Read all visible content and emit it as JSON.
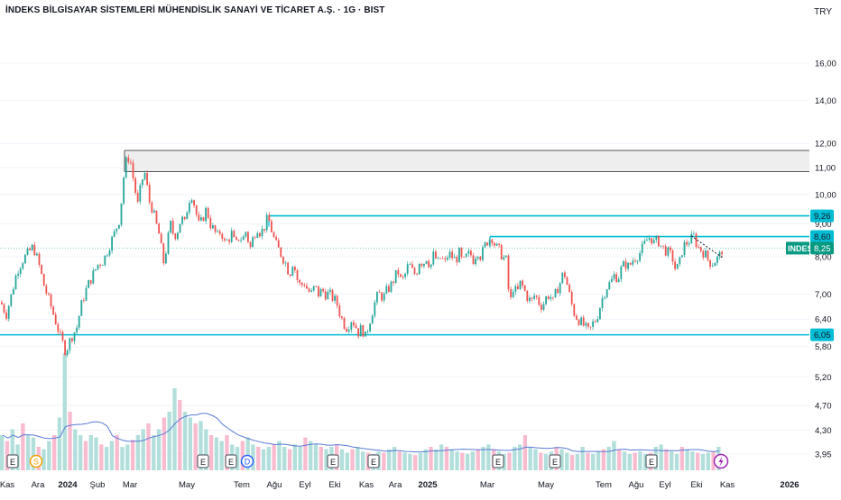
{
  "header": {
    "title": "İNDEKS BİLGİSAYAR SİSTEMLERİ MÜHENDİSLİK SANAYİ VE TİCARET A.Ş. · 1G · BIST",
    "currency": "TRY"
  },
  "chart_data": {
    "type": "candlestick",
    "y_scale": "log",
    "ylim": [
      3.75,
      18.2
    ],
    "y_ticks": [
      "16,00",
      "14,00",
      "12,00",
      "11,00",
      "10,00",
      "9,00",
      "8,00",
      "7,00",
      "6,40",
      "5,80",
      "5,20",
      "4,70",
      "4,30",
      "3,95"
    ],
    "x_ticks": [
      "Kas",
      "Ara",
      "2024",
      "Şub",
      "Mar",
      "May",
      "Tem",
      "Ağu",
      "Eyl",
      "Eki",
      "Kas",
      "Ara",
      "2025",
      "Mar",
      "May",
      "Tem",
      "Ağu",
      "Eyl",
      "Eki",
      "Kas",
      "2026"
    ],
    "x_ticks_bold": [
      "2024",
      "2025",
      "2026"
    ],
    "last_price": 8.25,
    "ticker_label": "INDES",
    "ticker_value": "8,25",
    "price_path": [
      [
        0,
        6.8
      ],
      [
        6,
        6.5
      ],
      [
        12,
        7.0
      ],
      [
        18,
        7.6
      ],
      [
        24,
        7.9
      ],
      [
        30,
        8.1
      ],
      [
        36,
        8.3
      ],
      [
        42,
        7.8
      ],
      [
        48,
        7.2
      ],
      [
        54,
        6.8
      ],
      [
        60,
        6.4
      ],
      [
        66,
        6.0
      ],
      [
        72,
        5.7
      ],
      [
        78,
        6.0
      ],
      [
        84,
        6.2
      ],
      [
        90,
        6.8
      ],
      [
        96,
        7.2
      ],
      [
        102,
        7.5
      ],
      [
        108,
        7.8
      ],
      [
        114,
        7.9
      ],
      [
        120,
        8.3
      ],
      [
        126,
        8.7
      ],
      [
        132,
        9.2
      ],
      [
        136,
        10.6
      ],
      [
        140,
        11.5
      ],
      [
        144,
        11.2
      ],
      [
        148,
        10.3
      ],
      [
        152,
        9.6
      ],
      [
        156,
        10.5
      ],
      [
        160,
        10.8
      ],
      [
        164,
        9.8
      ],
      [
        168,
        9.5
      ],
      [
        172,
        9.0
      ],
      [
        176,
        8.6
      ],
      [
        180,
        7.8
      ],
      [
        184,
        8.3
      ],
      [
        188,
        9.0
      ],
      [
        192,
        8.6
      ],
      [
        196,
        8.8
      ],
      [
        200,
        9.2
      ],
      [
        204,
        9.0
      ],
      [
        208,
        9.8
      ],
      [
        212,
        10.0
      ],
      [
        216,
        9.4
      ],
      [
        220,
        8.9
      ],
      [
        224,
        9.2
      ],
      [
        228,
        9.5
      ],
      [
        232,
        9.0
      ],
      [
        236,
        8.8
      ],
      [
        240,
        8.6
      ],
      [
        244,
        8.8
      ],
      [
        248,
        8.4
      ],
      [
        252,
        8.5
      ],
      [
        256,
        8.7
      ],
      [
        260,
        8.3
      ],
      [
        264,
        8.6
      ],
      [
        268,
        8.5
      ],
      [
        272,
        8.8
      ],
      [
        276,
        8.2
      ],
      [
        280,
        8.6
      ],
      [
        284,
        8.9
      ],
      [
        288,
        8.7
      ],
      [
        292,
        8.9
      ],
      [
        296,
        9.2
      ],
      [
        300,
        8.8
      ],
      [
        304,
        8.4
      ],
      [
        308,
        8.2
      ],
      [
        312,
        8.0
      ],
      [
        316,
        7.8
      ],
      [
        320,
        7.5
      ],
      [
        324,
        7.9
      ],
      [
        328,
        7.4
      ],
      [
        332,
        7.2
      ],
      [
        336,
        7.3
      ],
      [
        340,
        7.1
      ],
      [
        344,
        7.0
      ],
      [
        348,
        7.2
      ],
      [
        352,
        7.0
      ],
      [
        356,
        7.1
      ],
      [
        360,
        7.0
      ],
      [
        364,
        7.0
      ],
      [
        368,
        6.9
      ],
      [
        372,
        6.8
      ],
      [
        376,
        6.5
      ],
      [
        380,
        6.3
      ],
      [
        384,
        6.2
      ],
      [
        388,
        6.4
      ],
      [
        392,
        6.3
      ],
      [
        396,
        6.1
      ],
      [
        400,
        6.2
      ],
      [
        404,
        6.0
      ],
      [
        408,
        6.3
      ],
      [
        412,
        6.6
      ],
      [
        416,
        6.9
      ],
      [
        420,
        7.0
      ],
      [
        424,
        6.9
      ],
      [
        428,
        7.1
      ],
      [
        432,
        7.2
      ],
      [
        436,
        7.4
      ],
      [
        440,
        7.6
      ],
      [
        444,
        7.3
      ],
      [
        448,
        7.5
      ],
      [
        452,
        7.8
      ],
      [
        456,
        7.6
      ],
      [
        460,
        7.5
      ],
      [
        464,
        7.9
      ],
      [
        468,
        7.8
      ],
      [
        472,
        8.0
      ],
      [
        476,
        7.7
      ],
      [
        480,
        8.1
      ],
      [
        484,
        7.8
      ],
      [
        488,
        8.0
      ],
      [
        492,
        7.8
      ],
      [
        496,
        8.1
      ],
      [
        500,
        8.0
      ],
      [
        504,
        7.9
      ],
      [
        508,
        8.1
      ],
      [
        512,
        7.8
      ],
      [
        516,
        8.0
      ],
      [
        520,
        8.1
      ],
      [
        524,
        7.9
      ],
      [
        528,
        8.2
      ],
      [
        532,
        8.0
      ],
      [
        536,
        8.3
      ],
      [
        540,
        8.5
      ],
      [
        544,
        8.6
      ],
      [
        548,
        8.3
      ],
      [
        552,
        8.2
      ],
      [
        556,
        8.0
      ],
      [
        560,
        7.9
      ],
      [
        564,
        6.7
      ],
      [
        568,
        7.2
      ],
      [
        572,
        7.0
      ],
      [
        576,
        7.3
      ],
      [
        580,
        7.1
      ],
      [
        584,
        6.9
      ],
      [
        588,
        6.8
      ],
      [
        592,
        7.0
      ],
      [
        596,
        6.8
      ],
      [
        600,
        6.7
      ],
      [
        604,
        6.9
      ],
      [
        608,
        7.0
      ],
      [
        612,
        6.8
      ],
      [
        616,
        7.1
      ],
      [
        620,
        7.3
      ],
      [
        624,
        7.6
      ],
      [
        628,
        7.2
      ],
      [
        632,
        6.8
      ],
      [
        636,
        6.5
      ],
      [
        640,
        6.4
      ],
      [
        644,
        6.3
      ],
      [
        648,
        6.2
      ],
      [
        652,
        6.1
      ],
      [
        656,
        6.3
      ],
      [
        660,
        6.4
      ],
      [
        664,
        6.7
      ],
      [
        668,
        7.0
      ],
      [
        672,
        7.2
      ],
      [
        676,
        7.3
      ],
      [
        680,
        7.5
      ],
      [
        684,
        7.4
      ],
      [
        688,
        7.7
      ],
      [
        692,
        7.8
      ],
      [
        696,
        7.7
      ],
      [
        700,
        7.9
      ],
      [
        704,
        8.0
      ],
      [
        708,
        8.1
      ],
      [
        712,
        8.3
      ],
      [
        716,
        8.5
      ],
      [
        720,
        8.6
      ],
      [
        724,
        8.4
      ],
      [
        728,
        8.5
      ],
      [
        732,
        8.3
      ],
      [
        736,
        8.2
      ],
      [
        740,
        8.1
      ],
      [
        744,
        8.0
      ],
      [
        748,
        7.6
      ],
      [
        752,
        7.8
      ],
      [
        756,
        8.3
      ],
      [
        760,
        8.4
      ],
      [
        764,
        8.5
      ],
      [
        768,
        8.6
      ],
      [
        772,
        8.3
      ],
      [
        776,
        8.2
      ],
      [
        780,
        8.1
      ],
      [
        784,
        7.9
      ],
      [
        788,
        7.8
      ],
      [
        792,
        7.9
      ],
      [
        796,
        8.0
      ],
      [
        800,
        8.25
      ]
    ],
    "zones": [
      {
        "type": "box",
        "top": 11.7,
        "bottom": 10.85,
        "fill": "#eeeeee",
        "stroke": "#555555"
      },
      {
        "type": "hline",
        "value": 9.26,
        "color": "#00bcd4",
        "label": "9,26"
      },
      {
        "type": "hline",
        "value": 8.6,
        "color": "#00bcd4",
        "label": "8,60"
      },
      {
        "type": "hline",
        "value": 6.05,
        "color": "#00bcd4",
        "label": "6,05"
      }
    ],
    "volume": [
      0.3,
      0.25,
      0.35,
      0.22,
      0.4,
      0.3,
      0.28,
      0.2,
      0.18,
      0.25,
      0.3,
      0.45,
      1.0,
      0.5,
      0.35,
      0.3,
      0.25,
      0.3,
      0.28,
      0.22,
      0.2,
      0.25,
      0.3,
      0.2,
      0.22,
      0.26,
      0.3,
      0.35,
      0.4,
      0.3,
      0.35,
      0.45,
      0.5,
      0.7,
      0.6,
      0.5,
      0.45,
      0.4,
      0.42,
      0.35,
      0.3,
      0.28,
      0.25,
      0.3,
      0.22,
      0.2,
      0.25,
      0.28,
      0.22,
      0.2,
      0.18,
      0.2,
      0.22,
      0.25,
      0.2,
      0.18,
      0.22,
      0.2,
      0.28,
      0.25,
      0.22,
      0.2,
      0.18,
      0.2,
      0.22,
      0.18,
      0.15,
      0.18,
      0.2,
      0.16,
      0.15,
      0.14,
      0.16,
      0.15,
      0.18,
      0.2,
      0.16,
      0.15,
      0.14,
      0.13,
      0.15,
      0.18,
      0.2,
      0.18,
      0.22,
      0.2,
      0.18,
      0.16,
      0.15,
      0.14,
      0.16,
      0.18,
      0.2,
      0.22,
      0.18,
      0.16,
      0.14,
      0.15,
      0.2,
      0.22,
      0.3,
      0.2,
      0.18,
      0.15,
      0.14,
      0.16,
      0.2,
      0.18,
      0.15,
      0.13,
      0.14,
      0.2,
      0.15,
      0.14,
      0.16,
      0.18,
      0.2,
      0.25,
      0.18,
      0.16,
      0.14,
      0.15,
      0.16,
      0.14,
      0.15,
      0.2,
      0.22,
      0.18,
      0.16,
      0.14,
      0.2,
      0.18,
      0.16,
      0.15,
      0.14,
      0.15,
      0.16,
      0.2
    ],
    "events": [
      {
        "kind": "E",
        "x": 14
      },
      {
        "kind": "S",
        "x": 40
      },
      {
        "kind": "E",
        "x": 225
      },
      {
        "kind": "E",
        "x": 256
      },
      {
        "kind": "D",
        "x": 274
      },
      {
        "kind": "E",
        "x": 369
      },
      {
        "kind": "E",
        "x": 414
      },
      {
        "kind": "E",
        "x": 552
      },
      {
        "kind": "E",
        "x": 615
      },
      {
        "kind": "E",
        "x": 722
      },
      {
        "kind": "bolt",
        "x": 799
      }
    ],
    "colors": {
      "up": "#26a69a",
      "down": "#ef5350",
      "line": "#00bcd4",
      "ticker_bg": "#089981",
      "vol_up": "#b2dfdb",
      "vol_down": "#f8bbd0",
      "vol_ma": "#5b7bd5"
    }
  }
}
